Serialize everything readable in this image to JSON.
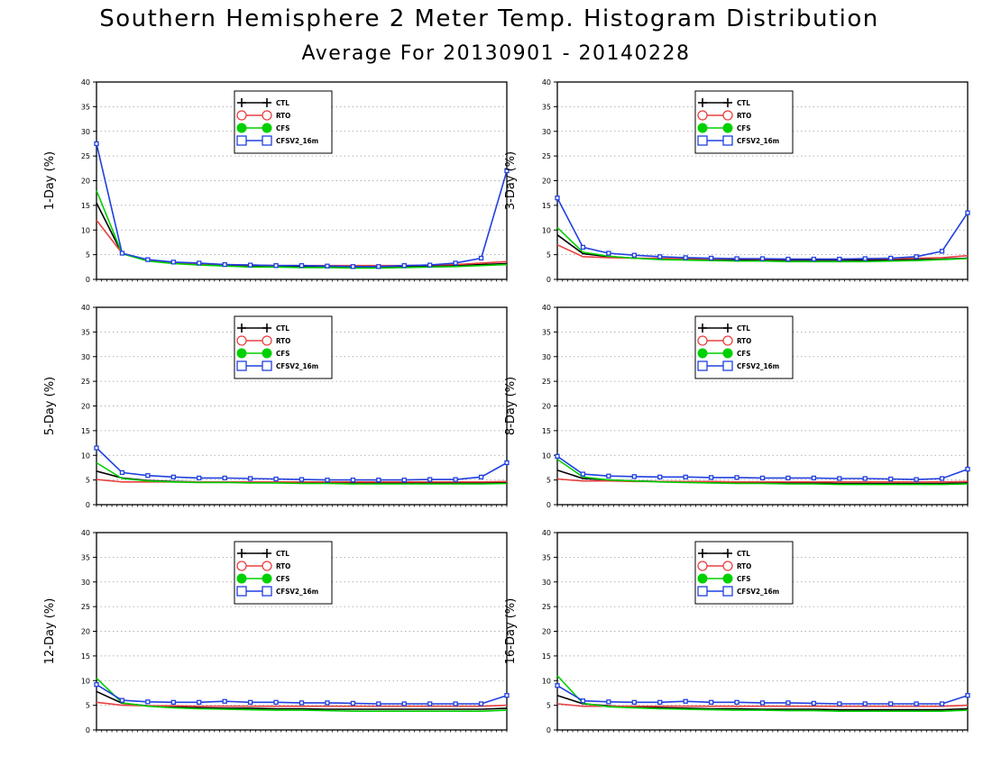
{
  "title": "Southern Hemisphere 2 Meter Temp. Histogram Distribution",
  "subtitle": "Average For 20130901 - 20140228",
  "colors": {
    "CTL": "#000000",
    "RTO": "#e84040",
    "CFS": "#00d000",
    "CFSV2_16m": "#2040e0"
  },
  "chart_data": [
    {
      "type": "line",
      "ylabel": "1-Day (%)",
      "ylim": [
        0,
        40
      ],
      "yticks": [
        "0",
        "5",
        "10",
        "15",
        "20",
        "25",
        "30",
        "35",
        "40"
      ],
      "grid": "horizontal dotted",
      "legend_position": "top-center",
      "series": [
        {
          "name": "CTL",
          "values": [
            15.5,
            5.2,
            3.8,
            3.3,
            3.0,
            2.8,
            2.7,
            2.6,
            2.5,
            2.6,
            2.5,
            2.5,
            2.6,
            2.7,
            2.8,
            3.0,
            3.2
          ]
        },
        {
          "name": "RTO",
          "values": [
            12.0,
            5.3,
            3.9,
            3.4,
            3.2,
            3.0,
            2.9,
            2.8,
            2.8,
            2.8,
            2.8,
            2.8,
            2.8,
            2.9,
            3.0,
            3.3,
            3.6
          ]
        },
        {
          "name": "CFS",
          "values": [
            18.0,
            5.2,
            3.7,
            3.2,
            2.9,
            2.7,
            2.5,
            2.5,
            2.4,
            2.4,
            2.3,
            2.3,
            2.4,
            2.5,
            2.6,
            2.8,
            3.0
          ]
        },
        {
          "name": "CFSV2_16m",
          "values": [
            27.5,
            5.3,
            4.0,
            3.5,
            3.3,
            3.0,
            2.9,
            2.8,
            2.8,
            2.7,
            2.6,
            2.6,
            2.8,
            2.9,
            3.3,
            4.3,
            22.0
          ]
        }
      ]
    },
    {
      "type": "line",
      "ylabel": "3-Day (%)",
      "ylim": [
        0,
        40
      ],
      "yticks": [
        "0",
        "5",
        "10",
        "15",
        "20",
        "25",
        "30",
        "35",
        "40"
      ],
      "grid": "horizontal dotted",
      "legend_position": "top-center",
      "series": [
        {
          "name": "CTL",
          "values": [
            9.0,
            5.2,
            4.6,
            4.3,
            4.1,
            4.0,
            3.9,
            3.9,
            3.9,
            3.9,
            3.9,
            3.9,
            3.9,
            3.9,
            4.0,
            4.1,
            4.3
          ]
        },
        {
          "name": "RTO",
          "values": [
            7.0,
            4.6,
            4.4,
            4.3,
            4.3,
            4.2,
            4.2,
            4.2,
            4.1,
            4.1,
            4.1,
            4.1,
            4.2,
            4.2,
            4.3,
            4.4,
            4.8
          ]
        },
        {
          "name": "CFS",
          "values": [
            10.5,
            5.5,
            4.7,
            4.3,
            4.0,
            3.9,
            3.8,
            3.7,
            3.7,
            3.6,
            3.6,
            3.6,
            3.6,
            3.7,
            3.8,
            4.0,
            4.2
          ]
        },
        {
          "name": "CFSV2_16m",
          "values": [
            16.5,
            6.5,
            5.3,
            4.9,
            4.6,
            4.4,
            4.3,
            4.2,
            4.2,
            4.1,
            4.1,
            4.1,
            4.2,
            4.3,
            4.6,
            5.7,
            13.5
          ]
        }
      ]
    },
    {
      "type": "line",
      "ylabel": "5-Day (%)",
      "ylim": [
        0,
        40
      ],
      "yticks": [
        "0",
        "5",
        "10",
        "15",
        "20",
        "25",
        "30",
        "35",
        "40"
      ],
      "grid": "horizontal dotted",
      "legend_position": "top-center",
      "series": [
        {
          "name": "CTL",
          "values": [
            6.8,
            5.4,
            4.9,
            4.7,
            4.6,
            4.6,
            4.5,
            4.5,
            4.5,
            4.4,
            4.4,
            4.4,
            4.4,
            4.4,
            4.4,
            4.4,
            4.5
          ]
        },
        {
          "name": "RTO",
          "values": [
            5.1,
            4.6,
            4.6,
            4.6,
            4.6,
            4.6,
            4.6,
            4.6,
            4.6,
            4.6,
            4.6,
            4.6,
            4.6,
            4.6,
            4.6,
            4.6,
            4.7
          ]
        },
        {
          "name": "CFS",
          "values": [
            8.5,
            5.3,
            4.8,
            4.6,
            4.5,
            4.5,
            4.4,
            4.4,
            4.3,
            4.3,
            4.2,
            4.2,
            4.2,
            4.2,
            4.2,
            4.2,
            4.3
          ]
        },
        {
          "name": "CFSV2_16m",
          "values": [
            11.5,
            6.5,
            5.9,
            5.6,
            5.4,
            5.4,
            5.3,
            5.2,
            5.1,
            5.0,
            5.0,
            5.0,
            5.0,
            5.1,
            5.1,
            5.6,
            8.5
          ]
        }
      ]
    },
    {
      "type": "line",
      "ylabel": "8-Day (%)",
      "ylim": [
        0,
        40
      ],
      "yticks": [
        "0",
        "5",
        "10",
        "15",
        "20",
        "25",
        "30",
        "35",
        "40"
      ],
      "grid": "horizontal dotted",
      "legend_position": "top-center",
      "series": [
        {
          "name": "CTL",
          "values": [
            7.0,
            5.3,
            5.0,
            4.8,
            4.7,
            4.6,
            4.5,
            4.5,
            4.4,
            4.4,
            4.4,
            4.3,
            4.3,
            4.3,
            4.3,
            4.3,
            4.4
          ]
        },
        {
          "name": "RTO",
          "values": [
            5.2,
            4.8,
            4.8,
            4.7,
            4.7,
            4.7,
            4.7,
            4.6,
            4.6,
            4.6,
            4.6,
            4.6,
            4.6,
            4.6,
            4.6,
            4.6,
            4.7
          ]
        },
        {
          "name": "CFS",
          "values": [
            9.2,
            5.6,
            5.0,
            4.8,
            4.6,
            4.5,
            4.4,
            4.3,
            4.3,
            4.2,
            4.2,
            4.1,
            4.1,
            4.1,
            4.1,
            4.1,
            4.2
          ]
        },
        {
          "name": "CFSV2_16m",
          "values": [
            9.8,
            6.2,
            5.8,
            5.7,
            5.6,
            5.6,
            5.5,
            5.5,
            5.4,
            5.4,
            5.4,
            5.3,
            5.3,
            5.2,
            5.1,
            5.3,
            7.2
          ]
        }
      ]
    },
    {
      "type": "line",
      "ylabel": "12-Day (%)",
      "ylim": [
        0,
        40
      ],
      "yticks": [
        "0",
        "5",
        "10",
        "15",
        "20",
        "25",
        "30",
        "35",
        "40"
      ],
      "grid": "horizontal dotted",
      "legend_position": "top-center",
      "series": [
        {
          "name": "CTL",
          "values": [
            7.8,
            5.4,
            4.9,
            4.7,
            4.5,
            4.4,
            4.4,
            4.3,
            4.3,
            4.2,
            4.2,
            4.2,
            4.2,
            4.2,
            4.2,
            4.2,
            4.4
          ]
        },
        {
          "name": "RTO",
          "values": [
            5.6,
            5.0,
            4.9,
            4.9,
            4.8,
            4.8,
            4.8,
            4.8,
            4.8,
            4.8,
            4.8,
            4.8,
            4.8,
            4.8,
            4.8,
            4.8,
            5.0
          ]
        },
        {
          "name": "CFS",
          "values": [
            10.5,
            5.5,
            4.8,
            4.5,
            4.3,
            4.2,
            4.1,
            4.0,
            4.0,
            3.9,
            3.8,
            3.8,
            3.8,
            3.8,
            3.8,
            3.8,
            4.0
          ]
        },
        {
          "name": "CFSV2_16m",
          "values": [
            9.2,
            6.0,
            5.7,
            5.6,
            5.6,
            5.8,
            5.6,
            5.6,
            5.5,
            5.5,
            5.4,
            5.3,
            5.3,
            5.3,
            5.3,
            5.3,
            7.0
          ]
        }
      ]
    },
    {
      "type": "line",
      "ylabel": "16-Day (%)",
      "ylim": [
        0,
        40
      ],
      "yticks": [
        "0",
        "5",
        "10",
        "15",
        "20",
        "25",
        "30",
        "35",
        "40"
      ],
      "grid": "horizontal dotted",
      "legend_position": "top-center",
      "series": [
        {
          "name": "CTL",
          "values": [
            7.0,
            5.3,
            4.9,
            4.6,
            4.5,
            4.4,
            4.3,
            4.3,
            4.2,
            4.2,
            4.2,
            4.1,
            4.1,
            4.1,
            4.1,
            4.1,
            4.3
          ]
        },
        {
          "name": "RTO",
          "values": [
            5.3,
            4.8,
            4.8,
            4.8,
            4.8,
            4.8,
            4.8,
            4.8,
            4.8,
            4.8,
            4.8,
            4.8,
            4.8,
            4.8,
            4.8,
            4.8,
            5.0
          ]
        },
        {
          "name": "CFS",
          "values": [
            11.0,
            5.4,
            4.7,
            4.5,
            4.3,
            4.2,
            4.1,
            4.0,
            4.0,
            3.9,
            3.9,
            3.8,
            3.8,
            3.8,
            3.8,
            3.8,
            4.0
          ]
        },
        {
          "name": "CFSV2_16m",
          "values": [
            9.0,
            5.9,
            5.7,
            5.6,
            5.6,
            5.8,
            5.6,
            5.6,
            5.5,
            5.5,
            5.4,
            5.3,
            5.3,
            5.3,
            5.3,
            5.3,
            7.0
          ]
        }
      ]
    }
  ]
}
